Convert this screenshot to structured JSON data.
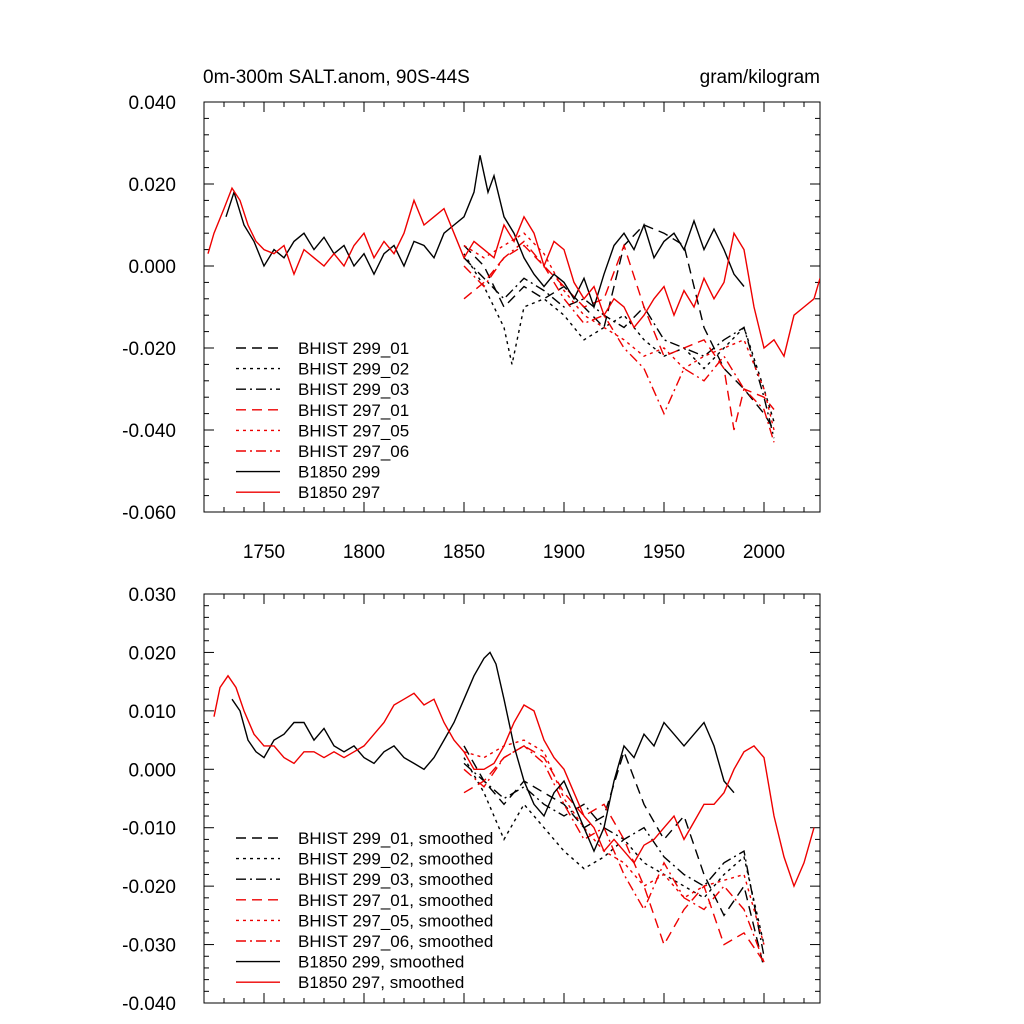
{
  "chart_data": [
    {
      "type": "line",
      "title": "0m-300m SALT.anom, 90S-44S",
      "units": "gram/kilogram",
      "xlim": [
        1720,
        2028
      ],
      "ylim": [
        -0.06,
        0.04
      ],
      "x_ticks": [
        "1750",
        "1800",
        "1850",
        "1900",
        "1950",
        "2000"
      ],
      "y_ticks": [
        "-0.060",
        "-0.040",
        "-0.020",
        "0.000",
        "0.020",
        "0.040"
      ],
      "series": [
        {
          "name": "BHIST 299_01",
          "color": "#000000",
          "dash": "dash",
          "x": [
            1850,
            1860,
            1870,
            1880,
            1890,
            1900,
            1910,
            1920,
            1930,
            1940,
            1950,
            1960,
            1970,
            1980,
            1990,
            2000,
            2005
          ],
          "y": [
            0.005,
            0.0,
            -0.01,
            -0.005,
            -0.008,
            -0.005,
            -0.01,
            -0.015,
            0.005,
            0.01,
            0.008,
            0.005,
            -0.015,
            -0.025,
            -0.03,
            -0.036,
            -0.04
          ]
        },
        {
          "name": "BHIST 299_02",
          "color": "#000000",
          "dash": "dot",
          "x": [
            1850,
            1860,
            1870,
            1874,
            1880,
            1890,
            1900,
            1910,
            1920,
            1930,
            1940,
            1950,
            1960,
            1970,
            1980,
            1990,
            2000,
            2005
          ],
          "y": [
            0.003,
            -0.005,
            -0.015,
            -0.024,
            -0.01,
            -0.008,
            -0.012,
            -0.018,
            -0.015,
            -0.012,
            -0.018,
            -0.022,
            -0.02,
            -0.025,
            -0.02,
            -0.015,
            -0.03,
            -0.038
          ]
        },
        {
          "name": "BHIST 299_03",
          "color": "#000000",
          "dash": "dashdot",
          "x": [
            1850,
            1860,
            1870,
            1880,
            1890,
            1900,
            1910,
            1920,
            1930,
            1940,
            1950,
            1960,
            1970,
            1980,
            1990,
            2000,
            2005
          ],
          "y": [
            0.002,
            -0.003,
            -0.008,
            -0.003,
            -0.006,
            -0.01,
            -0.008,
            -0.012,
            -0.015,
            -0.01,
            -0.018,
            -0.02,
            -0.022,
            -0.018,
            -0.015,
            -0.032,
            -0.042
          ]
        },
        {
          "name": "BHIST 297_01",
          "color": "#ee0000",
          "dash": "dash",
          "x": [
            1850,
            1860,
            1870,
            1880,
            1890,
            1900,
            1910,
            1920,
            1930,
            1940,
            1950,
            1960,
            1970,
            1980,
            1985,
            1990,
            2000,
            2005
          ],
          "y": [
            -0.008,
            -0.004,
            0.002,
            0.005,
            0.0,
            -0.005,
            -0.01,
            -0.008,
            0.005,
            -0.01,
            -0.022,
            -0.02,
            -0.018,
            -0.025,
            -0.04,
            -0.03,
            -0.032,
            -0.035
          ]
        },
        {
          "name": "BHIST 297_05",
          "color": "#ee0000",
          "dash": "dot",
          "x": [
            1850,
            1860,
            1870,
            1880,
            1890,
            1900,
            1910,
            1920,
            1930,
            1940,
            1950,
            1960,
            1970,
            1980,
            1990,
            2000,
            2005
          ],
          "y": [
            0.005,
            0.002,
            0.005,
            0.008,
            0.003,
            -0.006,
            -0.012,
            -0.015,
            -0.018,
            -0.022,
            -0.02,
            -0.025,
            -0.022,
            -0.02,
            -0.018,
            -0.03,
            -0.04
          ]
        },
        {
          "name": "BHIST 297_06",
          "color": "#ee0000",
          "dash": "dashdot",
          "x": [
            1850,
            1860,
            1870,
            1880,
            1890,
            1900,
            1910,
            1920,
            1930,
            1940,
            1950,
            1960,
            1970,
            1980,
            1990,
            2000,
            2005
          ],
          "y": [
            0.0,
            -0.005,
            0.002,
            0.006,
            0.0,
            -0.008,
            -0.014,
            -0.012,
            -0.02,
            -0.025,
            -0.036,
            -0.025,
            -0.028,
            -0.022,
            -0.03,
            -0.035,
            -0.043
          ]
        },
        {
          "name": "B1850 299",
          "color": "#000000",
          "dash": "solid",
          "x": [
            1731,
            1735,
            1740,
            1745,
            1750,
            1755,
            1760,
            1765,
            1770,
            1775,
            1780,
            1785,
            1790,
            1795,
            1800,
            1805,
            1810,
            1815,
            1820,
            1825,
            1830,
            1835,
            1840,
            1845,
            1850,
            1855,
            1858,
            1862,
            1865,
            1870,
            1875,
            1880,
            1885,
            1890,
            1895,
            1900,
            1905,
            1910,
            1915,
            1920,
            1925,
            1930,
            1935,
            1940,
            1945,
            1950,
            1955,
            1960,
            1965,
            1970,
            1975,
            1980,
            1985,
            1990
          ],
          "y": [
            0.012,
            0.018,
            0.01,
            0.006,
            0.0,
            0.004,
            0.002,
            0.006,
            0.008,
            0.004,
            0.007,
            0.003,
            0.005,
            0.0,
            0.003,
            -0.002,
            0.003,
            0.005,
            0.0,
            0.006,
            0.005,
            0.002,
            0.008,
            0.01,
            0.012,
            0.018,
            0.027,
            0.018,
            0.022,
            0.012,
            0.008,
            0.002,
            -0.002,
            -0.005,
            -0.002,
            -0.004,
            -0.008,
            -0.003,
            -0.01,
            -0.002,
            0.005,
            0.008,
            0.004,
            0.01,
            0.002,
            0.006,
            0.008,
            0.004,
            0.011,
            0.004,
            0.009,
            0.004,
            -0.002,
            -0.005
          ]
        },
        {
          "name": "B1850 297",
          "color": "#ee0000",
          "dash": "solid",
          "x": [
            1722,
            1725,
            1730,
            1734,
            1738,
            1742,
            1746,
            1750,
            1755,
            1760,
            1765,
            1770,
            1775,
            1780,
            1785,
            1790,
            1795,
            1800,
            1805,
            1810,
            1815,
            1820,
            1825,
            1830,
            1835,
            1840,
            1845,
            1850,
            1855,
            1860,
            1865,
            1870,
            1875,
            1880,
            1885,
            1890,
            1895,
            1900,
            1905,
            1910,
            1915,
            1920,
            1925,
            1930,
            1935,
            1940,
            1945,
            1950,
            1955,
            1960,
            1965,
            1970,
            1975,
            1980,
            1985,
            1990,
            1995,
            2000,
            2005,
            2010,
            2015,
            2020,
            2025,
            2028
          ],
          "y": [
            0.003,
            0.008,
            0.014,
            0.019,
            0.016,
            0.01,
            0.006,
            0.004,
            0.003,
            0.005,
            -0.002,
            0.004,
            0.002,
            0.0,
            0.003,
            0.0,
            0.005,
            0.008,
            0.002,
            0.006,
            0.003,
            0.008,
            0.016,
            0.01,
            0.012,
            0.014,
            0.008,
            0.002,
            0.006,
            0.004,
            0.002,
            0.01,
            0.006,
            0.012,
            0.008,
            0.0,
            0.006,
            0.004,
            -0.004,
            -0.008,
            -0.005,
            -0.012,
            -0.008,
            -0.01,
            -0.015,
            -0.012,
            -0.008,
            -0.005,
            -0.012,
            -0.006,
            -0.01,
            -0.003,
            -0.008,
            -0.004,
            0.008,
            0.004,
            -0.01,
            -0.02,
            -0.018,
            -0.022,
            -0.012,
            -0.01,
            -0.008,
            -0.003
          ]
        }
      ]
    },
    {
      "type": "line",
      "title": "",
      "units": "",
      "xlim": [
        1720,
        2028
      ],
      "ylim": [
        -0.04,
        0.03
      ],
      "x_ticks": [],
      "y_ticks": [
        "-0.040",
        "-0.030",
        "-0.020",
        "-0.010",
        "0.000",
        "0.010",
        "0.020",
        "0.030"
      ],
      "series": [
        {
          "name": "BHIST 299_01, smoothed",
          "color": "#000000",
          "dash": "dash",
          "x": [
            1850,
            1860,
            1870,
            1880,
            1890,
            1900,
            1910,
            1920,
            1930,
            1940,
            1950,
            1960,
            1970,
            1980,
            1990,
            2000
          ],
          "y": [
            0.004,
            -0.002,
            -0.006,
            -0.002,
            -0.004,
            -0.006,
            -0.01,
            -0.008,
            0.003,
            -0.006,
            -0.012,
            -0.008,
            -0.018,
            -0.025,
            -0.02,
            -0.034
          ]
        },
        {
          "name": "BHIST 299_02, smoothed",
          "color": "#000000",
          "dash": "dot",
          "x": [
            1850,
            1860,
            1870,
            1880,
            1890,
            1900,
            1910,
            1920,
            1930,
            1940,
            1950,
            1960,
            1970,
            1980,
            1990,
            2000
          ],
          "y": [
            0.002,
            -0.004,
            -0.012,
            -0.006,
            -0.01,
            -0.014,
            -0.017,
            -0.015,
            -0.012,
            -0.016,
            -0.018,
            -0.02,
            -0.022,
            -0.018,
            -0.015,
            -0.03
          ]
        },
        {
          "name": "BHIST 299_03, smoothed",
          "color": "#000000",
          "dash": "dashdot",
          "x": [
            1850,
            1860,
            1870,
            1880,
            1890,
            1900,
            1910,
            1920,
            1930,
            1940,
            1950,
            1960,
            1970,
            1980,
            1990,
            2000
          ],
          "y": [
            0.001,
            -0.002,
            -0.005,
            -0.003,
            -0.006,
            -0.008,
            -0.006,
            -0.01,
            -0.012,
            -0.01,
            -0.015,
            -0.018,
            -0.02,
            -0.016,
            -0.014,
            -0.032
          ]
        },
        {
          "name": "BHIST 297_01, smoothed",
          "color": "#ee0000",
          "dash": "dash",
          "x": [
            1850,
            1860,
            1870,
            1880,
            1890,
            1900,
            1910,
            1920,
            1930,
            1940,
            1950,
            1960,
            1970,
            1980,
            1990,
            2000
          ],
          "y": [
            -0.004,
            -0.002,
            0.002,
            0.004,
            0.002,
            -0.004,
            -0.008,
            -0.006,
            -0.012,
            -0.02,
            -0.03,
            -0.024,
            -0.02,
            -0.03,
            -0.028,
            -0.033
          ]
        },
        {
          "name": "BHIST 297_05, smoothed",
          "color": "#ee0000",
          "dash": "dot",
          "x": [
            1850,
            1860,
            1870,
            1880,
            1890,
            1900,
            1910,
            1920,
            1930,
            1940,
            1950,
            1960,
            1970,
            1980,
            1990,
            2000
          ],
          "y": [
            0.003,
            0.002,
            0.004,
            0.005,
            0.003,
            -0.005,
            -0.01,
            -0.014,
            -0.016,
            -0.02,
            -0.018,
            -0.022,
            -0.02,
            -0.019,
            -0.018,
            -0.03
          ]
        },
        {
          "name": "BHIST 297_06, smoothed",
          "color": "#ee0000",
          "dash": "dashdot",
          "x": [
            1850,
            1860,
            1870,
            1880,
            1890,
            1900,
            1910,
            1920,
            1930,
            1940,
            1950,
            1960,
            1970,
            1980,
            1990,
            2000
          ],
          "y": [
            0.0,
            -0.003,
            0.002,
            0.004,
            0.001,
            -0.006,
            -0.012,
            -0.01,
            -0.018,
            -0.024,
            -0.016,
            -0.022,
            -0.024,
            -0.02,
            -0.024,
            -0.033
          ]
        },
        {
          "name": "B1850 299, smoothed",
          "color": "#000000",
          "dash": "solid",
          "x": [
            1734,
            1738,
            1742,
            1746,
            1750,
            1755,
            1760,
            1765,
            1770,
            1775,
            1780,
            1785,
            1790,
            1795,
            1800,
            1805,
            1810,
            1815,
            1820,
            1825,
            1830,
            1835,
            1840,
            1845,
            1850,
            1855,
            1860,
            1863,
            1866,
            1870,
            1875,
            1880,
            1885,
            1890,
            1895,
            1900,
            1905,
            1910,
            1915,
            1920,
            1925,
            1930,
            1935,
            1940,
            1945,
            1950,
            1955,
            1960,
            1965,
            1970,
            1975,
            1980,
            1985
          ],
          "y": [
            0.012,
            0.01,
            0.005,
            0.003,
            0.002,
            0.005,
            0.006,
            0.008,
            0.008,
            0.005,
            0.007,
            0.004,
            0.003,
            0.004,
            0.002,
            0.001,
            0.003,
            0.004,
            0.002,
            0.001,
            0.0,
            0.002,
            0.005,
            0.008,
            0.012,
            0.016,
            0.019,
            0.02,
            0.018,
            0.012,
            0.004,
            -0.002,
            -0.006,
            -0.008,
            -0.004,
            -0.002,
            -0.006,
            -0.01,
            -0.014,
            -0.01,
            -0.002,
            0.004,
            0.002,
            0.006,
            0.004,
            0.008,
            0.006,
            0.004,
            0.006,
            0.008,
            0.004,
            -0.002,
            -0.004
          ]
        },
        {
          "name": "B1850 297, smoothed",
          "color": "#ee0000",
          "dash": "solid",
          "x": [
            1725,
            1728,
            1732,
            1736,
            1740,
            1745,
            1750,
            1755,
            1760,
            1765,
            1770,
            1775,
            1780,
            1785,
            1790,
            1795,
            1800,
            1805,
            1810,
            1815,
            1820,
            1825,
            1830,
            1835,
            1840,
            1845,
            1850,
            1855,
            1860,
            1865,
            1870,
            1875,
            1880,
            1885,
            1890,
            1895,
            1900,
            1905,
            1910,
            1915,
            1920,
            1925,
            1930,
            1935,
            1940,
            1945,
            1950,
            1955,
            1960,
            1965,
            1970,
            1975,
            1980,
            1985,
            1990,
            1995,
            2000,
            2005,
            2010,
            2015,
            2020,
            2025
          ],
          "y": [
            0.009,
            0.014,
            0.016,
            0.014,
            0.01,
            0.006,
            0.004,
            0.004,
            0.002,
            0.001,
            0.003,
            0.003,
            0.002,
            0.003,
            0.002,
            0.003,
            0.004,
            0.006,
            0.008,
            0.011,
            0.012,
            0.013,
            0.011,
            0.012,
            0.008,
            0.005,
            0.003,
            0.0,
            0.0,
            0.001,
            0.004,
            0.008,
            0.011,
            0.01,
            0.005,
            0.002,
            0.0,
            -0.004,
            -0.008,
            -0.01,
            -0.014,
            -0.012,
            -0.014,
            -0.016,
            -0.013,
            -0.012,
            -0.01,
            -0.008,
            -0.012,
            -0.009,
            -0.006,
            -0.006,
            -0.004,
            0.0,
            0.003,
            0.004,
            0.002,
            -0.008,
            -0.015,
            -0.02,
            -0.016,
            -0.01
          ]
        }
      ]
    }
  ]
}
